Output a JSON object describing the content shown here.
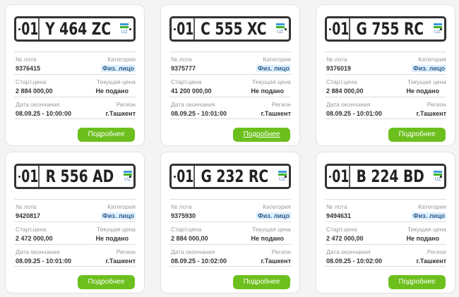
{
  "labels": {
    "lot": "№ лота",
    "category": "Категория",
    "start_price": "Старт.цена",
    "current_price": "Текущая цена",
    "end_date": "Дата окончания",
    "region": "Регион",
    "details": "Подробнее",
    "country": "UZ"
  },
  "colors": {
    "button": "#6cbf1c",
    "badge_bg": "#dcefff"
  },
  "lots": [
    {
      "plate_region": "01",
      "plate_number": "Y 464 ZC",
      "lot": "9376415",
      "category": "Физ. лицо",
      "start_price": "2 884 000,00",
      "current_price": "Не подано",
      "end_date": "08.09.25 - 10:00:00",
      "region": "г.Ташкент"
    },
    {
      "plate_region": "01",
      "plate_number": "C 555 XC",
      "lot": "9375777",
      "category": "Физ. лицо",
      "start_price": "41 200 000,00",
      "current_price": "Не подано",
      "end_date": "08.09.25 - 10:01:00",
      "region": "г.Ташкент"
    },
    {
      "plate_region": "01",
      "plate_number": "G 755 RC",
      "lot": "9376019",
      "category": "Физ. лицо",
      "start_price": "2 884 000,00",
      "current_price": "Не подано",
      "end_date": "08.09.25 - 10:01:00",
      "region": "г.Ташкент"
    },
    {
      "plate_region": "01",
      "plate_number": "R 556 AD",
      "lot": "9420817",
      "category": "Физ. лицо",
      "start_price": "2 472 000,00",
      "current_price": "Не подано",
      "end_date": "08.09.25 - 10:01:00",
      "region": "г.Ташкент"
    },
    {
      "plate_region": "01",
      "plate_number": "G 232 RC",
      "lot": "9375930",
      "category": "Физ. лицо",
      "start_price": "2 884 000,00",
      "current_price": "Не подано",
      "end_date": "08.09.25 - 10:02:00",
      "region": "г.Ташкент"
    },
    {
      "plate_region": "01",
      "plate_number": "B 224 BD",
      "lot": "9494631",
      "category": "Физ. лицо",
      "start_price": "2 472 000,00",
      "current_price": "Не подано",
      "end_date": "08.09.25 - 10:02:00",
      "region": "г.Ташкент"
    }
  ]
}
